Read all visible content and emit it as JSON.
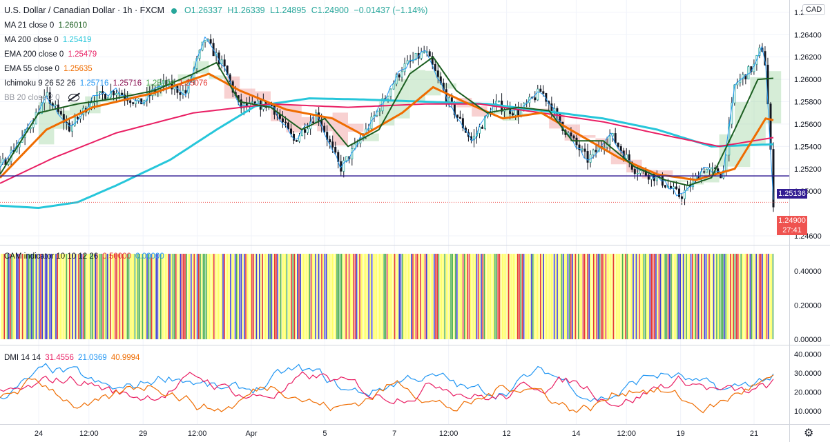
{
  "header": {
    "symbol_title": "U.S. Dollar / Canadian Dollar · 1h · FXCM",
    "open": "O1.26337",
    "high": "H1.26339",
    "low": "L1.24895",
    "close": "C1.24900",
    "change": "−0.01437 (−1.14%)",
    "currency": "CAD"
  },
  "indicators": [
    {
      "label": "MA 21 close 0",
      "value": "1.26010",
      "color": "#1b5e20"
    },
    {
      "label": "MA 200 close 0",
      "value": "1.25419",
      "color": "#26c6da"
    },
    {
      "label": "EMA 200 close 0",
      "value": "1.25479",
      "color": "#e91e63"
    },
    {
      "label": "EMA 55 close 0",
      "value": "1.25635",
      "color": "#ef6c00"
    }
  ],
  "ichimoku": {
    "label": "Ichimoku 9 26 52 26",
    "values": [
      "1.25716",
      "1.25716",
      "1.25104",
      "1.25076"
    ],
    "colors": [
      "#2196f3",
      "#880e4f",
      "#43a047",
      "#e53935"
    ]
  },
  "bb": {
    "label": "BB 20 close 2 0"
  },
  "cam": {
    "label": "CAM indicator 10 10 12 26",
    "v1": "0.50000",
    "v2": "0.00000",
    "c1": "#e53935",
    "c2": "#2196f3"
  },
  "dmi": {
    "label": "DMI 14 14",
    "values": [
      "31.4556",
      "21.0369",
      "40.9994"
    ],
    "colors": [
      "#e91e63",
      "#2196f3",
      "#ef6c00"
    ]
  },
  "price_badges": {
    "hline": "1.25136",
    "last": "1.24900",
    "countdown": "27:41"
  },
  "colors": {
    "up": "#26a69a",
    "hline": "#311b92",
    "last_badge": "#ef5350",
    "ma21": "#1b5e20",
    "ma200": "#26c6da",
    "ema200": "#e91e63",
    "ema55": "#ef6c00",
    "tenkan": "#2196f3",
    "kijun": "#880e4f",
    "cloud_up": "#a5d6a7",
    "cloud_down": "#ef9a9a",
    "cam_yellow": "#ffff66",
    "cam_blue": "#3f3fd1",
    "cam_green": "#4caf50",
    "cam_red": "#e53935"
  },
  "chart_data": [
    {
      "type": "candlestick",
      "title": "U.S. Dollar / Canadian Dollar · 1h · FXCM",
      "x_ticks": [
        "24",
        "12:00",
        "29",
        "12:00",
        "Apr",
        "5",
        "7",
        "12:00",
        "12",
        "14",
        "12:00",
        "19",
        "21"
      ],
      "y_ticks": [
        "1.26600",
        "1.26400",
        "1.26200",
        "1.26000",
        "1.25800",
        "1.25600",
        "1.25400",
        "1.25200",
        "1.25000",
        "1.24600"
      ],
      "ylim": [
        1.2452,
        1.2671
      ],
      "close_path": [
        [
          0,
          1.2522
        ],
        [
          0.03,
          1.2548
        ],
        [
          0.06,
          1.2585
        ],
        [
          0.09,
          1.2556
        ],
        [
          0.12,
          1.2583
        ],
        [
          0.15,
          1.259
        ],
        [
          0.18,
          1.2578
        ],
        [
          0.21,
          1.2596
        ],
        [
          0.24,
          1.2588
        ],
        [
          0.265,
          1.2636
        ],
        [
          0.29,
          1.261
        ],
        [
          0.31,
          1.2575
        ],
        [
          0.35,
          1.2578
        ],
        [
          0.38,
          1.2545
        ],
        [
          0.41,
          1.257
        ],
        [
          0.44,
          1.252
        ],
        [
          0.47,
          1.255
        ],
        [
          0.52,
          1.261
        ],
        [
          0.55,
          1.2625
        ],
        [
          0.58,
          1.258
        ],
        [
          0.61,
          1.2545
        ],
        [
          0.64,
          1.2578
        ],
        [
          0.67,
          1.257
        ],
        [
          0.7,
          1.259
        ],
        [
          0.73,
          1.2555
        ],
        [
          0.76,
          1.2528
        ],
        [
          0.79,
          1.255
        ],
        [
          0.82,
          1.252
        ],
        [
          0.85,
          1.2512
        ],
        [
          0.88,
          1.2495
        ],
        [
          0.91,
          1.252
        ],
        [
          0.935,
          1.2515
        ],
        [
          0.95,
          1.2595
        ],
        [
          0.975,
          1.2612
        ],
        [
          0.985,
          1.263
        ],
        [
          0.99,
          1.2612
        ],
        [
          1.0,
          1.249
        ]
      ],
      "ma21": [
        [
          0,
          1.2515
        ],
        [
          0.05,
          1.257
        ],
        [
          0.1,
          1.2578
        ],
        [
          0.15,
          1.2583
        ],
        [
          0.2,
          1.259
        ],
        [
          0.25,
          1.2605
        ],
        [
          0.28,
          1.2615
        ],
        [
          0.31,
          1.258
        ],
        [
          0.35,
          1.2575
        ],
        [
          0.39,
          1.2555
        ],
        [
          0.42,
          1.2565
        ],
        [
          0.45,
          1.254
        ],
        [
          0.49,
          1.2555
        ],
        [
          0.53,
          1.2605
        ],
        [
          0.56,
          1.262
        ],
        [
          0.59,
          1.259
        ],
        [
          0.63,
          1.257
        ],
        [
          0.67,
          1.2575
        ],
        [
          0.71,
          1.2572
        ],
        [
          0.74,
          1.2545
        ],
        [
          0.78,
          1.2545
        ],
        [
          0.82,
          1.2522
        ],
        [
          0.86,
          1.251
        ],
        [
          0.89,
          1.2505
        ],
        [
          0.92,
          1.2512
        ],
        [
          0.95,
          1.2555
        ],
        [
          0.98,
          1.26
        ],
        [
          1.0,
          1.2601
        ]
      ],
      "ema55": [
        [
          0,
          1.2512
        ],
        [
          0.06,
          1.2555
        ],
        [
          0.12,
          1.2575
        ],
        [
          0.2,
          1.2588
        ],
        [
          0.27,
          1.2605
        ],
        [
          0.31,
          1.259
        ],
        [
          0.37,
          1.2573
        ],
        [
          0.43,
          1.2565
        ],
        [
          0.47,
          1.255
        ],
        [
          0.52,
          1.257
        ],
        [
          0.56,
          1.2593
        ],
        [
          0.6,
          1.258
        ],
        [
          0.65,
          1.2565
        ],
        [
          0.7,
          1.257
        ],
        [
          0.75,
          1.255
        ],
        [
          0.8,
          1.253
        ],
        [
          0.85,
          1.2515
        ],
        [
          0.9,
          1.251
        ],
        [
          0.95,
          1.252
        ],
        [
          0.99,
          1.2565
        ],
        [
          1.0,
          1.25635
        ]
      ],
      "ema200": [
        [
          0,
          1.2507
        ],
        [
          0.07,
          1.253
        ],
        [
          0.15,
          1.2552
        ],
        [
          0.25,
          1.257
        ],
        [
          0.35,
          1.2578
        ],
        [
          0.45,
          1.2575
        ],
        [
          0.55,
          1.2578
        ],
        [
          0.62,
          1.2578
        ],
        [
          0.7,
          1.257
        ],
        [
          0.78,
          1.2562
        ],
        [
          0.86,
          1.255
        ],
        [
          0.93,
          1.254
        ],
        [
          1.0,
          1.25479
        ]
      ],
      "ma200": [
        [
          0,
          1.2487
        ],
        [
          0.05,
          1.2485
        ],
        [
          0.1,
          1.249
        ],
        [
          0.15,
          1.2505
        ],
        [
          0.22,
          1.2528
        ],
        [
          0.28,
          1.2555
        ],
        [
          0.33,
          1.2576
        ],
        [
          0.4,
          1.2583
        ],
        [
          0.47,
          1.2582
        ],
        [
          0.55,
          1.258
        ],
        [
          0.63,
          1.2578
        ],
        [
          0.7,
          1.2572
        ],
        [
          0.78,
          1.2565
        ],
        [
          0.85,
          1.2555
        ],
        [
          0.92,
          1.254
        ],
        [
          1.0,
          1.25419
        ]
      ],
      "hline": 1.25136,
      "last": 1.249
    },
    {
      "type": "bar",
      "title": "CAM indicator 10 10 12 26",
      "y_ticks": [
        "0.40000",
        "0.20000",
        "0.00000"
      ],
      "ylim": [
        0,
        0.5
      ],
      "value": 0.5
    },
    {
      "type": "line",
      "title": "DMI 14 14",
      "y_ticks": [
        "40.0000",
        "30.0000",
        "20.0000",
        "10.0000"
      ],
      "ylim": [
        3,
        43
      ]
    }
  ]
}
